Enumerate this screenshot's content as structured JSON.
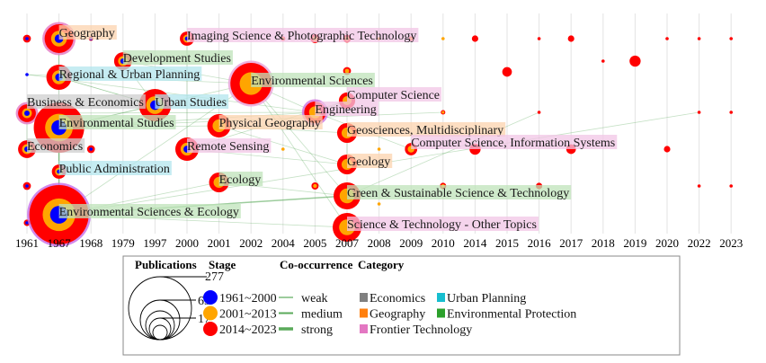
{
  "chart_data": {
    "type": "scatter",
    "title": "",
    "xlabel": "",
    "ylabel": "",
    "x_categories": [
      "1961",
      "1967",
      "1968",
      "1979",
      "1997",
      "2000",
      "2001",
      "2002",
      "2004",
      "2005",
      "2007",
      "2008",
      "2009",
      "2010",
      "2014",
      "2015",
      "2016",
      "2017",
      "2018",
      "2019",
      "2020",
      "2022",
      "2023"
    ],
    "grid": "vertical",
    "colors": {
      "stage_1961_2000": "#0000ff",
      "stage_2001_2013": "#ffa500",
      "stage_2014_2023": "#ff0000",
      "edge": "#5aaa5a",
      "Economics": "#808080",
      "Urban Planning": "#17becf",
      "Geography": "#ff7f0e",
      "Environmental Protection": "#2ca02c",
      "Frontier Technology": "#e377c2"
    },
    "nodes": [
      {
        "label": "Geography",
        "year": "1967",
        "publications": 65,
        "stages": [
          "1961~2000",
          "2001~2013",
          "2014~2023"
        ],
        "category": "Geography"
      },
      {
        "label": "Development Studies",
        "year": "1979",
        "publications": 25,
        "stages": [
          "1961~2000",
          "2001~2013",
          "2014~2023"
        ],
        "category": "Environmental Protection"
      },
      {
        "label": "Regional & Urban Planning",
        "year": "1967",
        "publications": 50,
        "stages": [
          "1961~2000",
          "2001~2013",
          "2014~2023"
        ],
        "category": "Urban Planning"
      },
      {
        "label": "Environmental Sciences",
        "year": "2002",
        "publications": 134,
        "stages": [
          "2001~2013",
          "2014~2023"
        ],
        "category": "Environmental Protection"
      },
      {
        "label": "Urban Studies",
        "year": "1997",
        "publications": 82,
        "stages": [
          "1961~2000",
          "2001~2013",
          "2014~2023"
        ],
        "category": "Urban Planning"
      },
      {
        "label": "Business & Economics",
        "year": "1961",
        "publications": 25,
        "stages": [
          "1961~2000",
          "2001~2013",
          "2014~2023"
        ],
        "category": "Economics"
      },
      {
        "label": "Environmental Studies",
        "year": "1967",
        "publications": 200,
        "stages": [
          "1961~2000",
          "2001~2013",
          "2014~2023"
        ],
        "category": "Environmental Protection"
      },
      {
        "label": "Physical Geography",
        "year": "2001",
        "publications": 43,
        "stages": [
          "2001~2013",
          "2014~2023"
        ],
        "category": "Geography"
      },
      {
        "label": "Imaging Science & Photographic Technology",
        "year": "2000",
        "publications": 16,
        "stages": [
          "1961~2000",
          "2001~2013",
          "2014~2023"
        ],
        "category": "Frontier Technology"
      },
      {
        "label": "Economics",
        "year": "1961",
        "publications": 25,
        "stages": [
          "1961~2000",
          "2001~2013",
          "2014~2023"
        ],
        "category": "Economics"
      },
      {
        "label": "Remote Sensing",
        "year": "2000",
        "publications": 43,
        "stages": [
          "1961~2000",
          "2001~2013",
          "2014~2023"
        ],
        "category": "Frontier Technology"
      },
      {
        "label": "Public Administration",
        "year": "1967",
        "publications": 16,
        "stages": [
          "1961~2000",
          "2001~2013",
          "2014~2023"
        ],
        "category": "Urban Planning"
      },
      {
        "label": "Ecology",
        "year": "2001",
        "publications": 31,
        "stages": [
          "2001~2013",
          "2014~2023"
        ],
        "category": "Environmental Protection"
      },
      {
        "label": "Environmental Sciences & Ecology",
        "year": "1967",
        "publications": 277,
        "stages": [
          "1961~2000",
          "2001~2013",
          "2014~2023"
        ],
        "category": "Environmental Protection"
      },
      {
        "label": "Engineering",
        "year": "2005",
        "publications": 37,
        "stages": [
          "2001~2013",
          "2014~2023"
        ],
        "category": "Frontier Technology"
      },
      {
        "label": "Computer Science",
        "year": "2007",
        "publications": 21,
        "stages": [
          "2001~2013",
          "2014~2023"
        ],
        "category": "Frontier Technology"
      },
      {
        "label": "Geosciences, Multidisciplinary",
        "year": "2007",
        "publications": 31,
        "stages": [
          "2001~2013",
          "2014~2023"
        ],
        "category": "Geography"
      },
      {
        "label": "Geology",
        "year": "2007",
        "publications": 31,
        "stages": [
          "2001~2013",
          "2014~2023"
        ],
        "category": "Geography"
      },
      {
        "label": "Green & Sustainable Science & Technology",
        "year": "2007",
        "publications": 57,
        "stages": [
          "2001~2013",
          "2014~2023"
        ],
        "category": "Environmental Protection"
      },
      {
        "label": "Science & Technology - Other Topics",
        "year": "2007",
        "publications": 65,
        "stages": [
          "2001~2013",
          "2014~2023"
        ],
        "category": "Frontier Technology"
      },
      {
        "label": "Computer Science, Information Systems",
        "year": "2009",
        "publications": 12,
        "stages": [
          "2001~2013",
          "2014~2023"
        ],
        "category": "Frontier Technology"
      }
    ],
    "minor_nodes": [
      {
        "year": "1961",
        "publications": 6,
        "stages": [
          "1961~2000",
          "2014~2023"
        ]
      },
      {
        "year": "1968",
        "publications": 2,
        "stages": [
          "1961~2000",
          "2014~2023"
        ]
      },
      {
        "year": "2004",
        "publications": 2,
        "stages": [
          "2001~2013",
          "2014~2023"
        ]
      },
      {
        "year": "2005",
        "publications": 8,
        "stages": [
          "2001~2013",
          "2014~2023"
        ]
      },
      {
        "year": "2007",
        "publications": 6,
        "stages": [
          "2001~2013",
          "2014~2023"
        ]
      },
      {
        "year": "2008",
        "publications": 1,
        "stages": [
          "2001~2013"
        ]
      },
      {
        "year": "2009",
        "publications": 2,
        "stages": [
          "2001~2013",
          "2014~2023"
        ]
      },
      {
        "year": "2010",
        "publications": 1,
        "stages": [
          "2001~2013"
        ]
      },
      {
        "year": "2014",
        "publications": 4,
        "stages": [
          "2014~2023"
        ]
      },
      {
        "year": "2016",
        "publications": 1,
        "stages": [
          "2014~2023"
        ]
      },
      {
        "year": "2017",
        "publications": 4,
        "stages": [
          "2014~2023"
        ]
      },
      {
        "year": "2020",
        "publications": 1,
        "stages": [
          "2014~2023"
        ]
      },
      {
        "year": "2022",
        "publications": 1,
        "stages": [
          "2014~2023"
        ]
      },
      {
        "year": "2023",
        "publications": 1,
        "stages": [
          "2014~2023"
        ]
      },
      {
        "year": "1961",
        "publications": 1,
        "stages": [
          "1961~2000"
        ]
      },
      {
        "year": "2007",
        "publications": 6,
        "stages": [
          "2001~2013",
          "2014~2023"
        ]
      },
      {
        "year": "2015",
        "publications": 9,
        "stages": [
          "2014~2023"
        ]
      },
      {
        "year": "2018",
        "publications": 1,
        "stages": [
          "2014~2023"
        ]
      },
      {
        "year": "2019",
        "publications": 12,
        "stages": [
          "2014~2023"
        ]
      },
      {
        "year": "2010",
        "publications": 2,
        "stages": [
          "2001~2013",
          "2014~2023"
        ]
      },
      {
        "year": "2016",
        "publications": 1,
        "stages": [
          "2014~2023"
        ]
      },
      {
        "year": "2022",
        "publications": 1,
        "stages": [
          "2014~2023"
        ]
      },
      {
        "year": "2023",
        "publications": 1,
        "stages": [
          "2014~2023"
        ]
      },
      {
        "year": "1968",
        "publications": 6,
        "stages": [
          "1961~2000",
          "2014~2023"
        ]
      },
      {
        "year": "2004",
        "publications": 1,
        "stages": [
          "2001~2013"
        ]
      },
      {
        "year": "2008",
        "publications": 1,
        "stages": [
          "2001~2013"
        ]
      },
      {
        "year": "2014",
        "publications": 12,
        "stages": [
          "2014~2023"
        ]
      },
      {
        "year": "2017",
        "publications": 9,
        "stages": [
          "2014~2023"
        ]
      },
      {
        "year": "2020",
        "publications": 4,
        "stages": [
          "2014~2023"
        ]
      },
      {
        "year": "1961",
        "publications": 6,
        "stages": [
          "1961~2000",
          "2014~2023"
        ]
      },
      {
        "year": "2005",
        "publications": 5,
        "stages": [
          "2001~2013",
          "2014~2023"
        ]
      },
      {
        "year": "2010",
        "publications": 4,
        "stages": [
          "2001~2013",
          "2014~2023"
        ]
      },
      {
        "year": "2016",
        "publications": 4,
        "stages": [
          "2014~2023"
        ]
      },
      {
        "year": "2022",
        "publications": 1,
        "stages": [
          "2014~2023"
        ]
      },
      {
        "year": "2023",
        "publications": 1,
        "stages": [
          "2014~2023"
        ]
      },
      {
        "year": "2008",
        "publications": 1,
        "stages": [
          "2001~2013"
        ]
      },
      {
        "year": "1961",
        "publications": 4,
        "stages": [
          "1961~2000",
          "2014~2023"
        ]
      }
    ],
    "edges": [
      [
        13,
        6,
        "medium"
      ],
      [
        13,
        18,
        "medium"
      ],
      [
        6,
        3,
        "weak"
      ],
      [
        6,
        14,
        "weak"
      ],
      [
        3,
        14,
        "weak"
      ],
      [
        4,
        2,
        "weak"
      ],
      [
        4,
        6,
        "weak"
      ],
      [
        13,
        12,
        "weak"
      ],
      [
        13,
        3,
        "weak"
      ],
      [
        7,
        16,
        "weak"
      ],
      [
        7,
        17,
        "weak"
      ],
      [
        10,
        17,
        "weak"
      ],
      [
        10,
        15,
        "weak"
      ],
      [
        14,
        15,
        "weak"
      ],
      [
        3,
        18,
        "weak"
      ],
      [
        3,
        19,
        "weak"
      ],
      [
        13,
        19,
        "weak"
      ],
      [
        0,
        2,
        "weak"
      ],
      [
        0,
        6,
        "weak"
      ],
      [
        1,
        4,
        "weak"
      ],
      [
        1,
        3,
        "weak"
      ],
      [
        9,
        5,
        "weak"
      ],
      [
        11,
        6,
        "weak"
      ],
      [
        12,
        18,
        "weak"
      ],
      [
        16,
        17,
        "weak"
      ],
      [
        14,
        20,
        "weak"
      ],
      [
        8,
        10,
        "weak"
      ],
      [
        6,
        7,
        "weak"
      ],
      [
        5,
        14,
        "weak"
      ],
      [
        2,
        4,
        "weak"
      ]
    ],
    "legend": {
      "publications_title": "Publications",
      "publications_values": [
        "277",
        "69",
        "17"
      ],
      "stage_title": "Stage",
      "stages": [
        "1961~2000",
        "2001~2013",
        "2014~2023"
      ],
      "cooccurrence_title": "Co-occurrence",
      "cooccurrence": [
        "weak",
        "medium",
        "strong"
      ],
      "category_title": "Category",
      "categories": [
        "Economics",
        "Urban Planning",
        "Geography",
        "Environmental Protection",
        "Frontier Technology"
      ]
    }
  }
}
